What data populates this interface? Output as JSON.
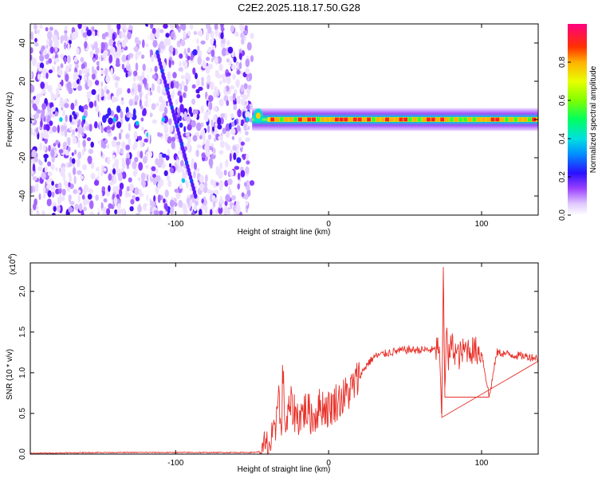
{
  "title": "C2E2.2025.118.17.50.G28",
  "chart_data": [
    {
      "type": "heatmap",
      "xlabel": "Height of straight line (km)",
      "ylabel": "Frequency (Hz)",
      "xlim": [
        -195,
        137
      ],
      "ylim": [
        -50,
        50
      ],
      "x_ticks": [
        -100,
        0,
        100
      ],
      "x_tick_labels": [
        "-100",
        "0",
        "100"
      ],
      "y_ticks": [
        -40,
        -20,
        0,
        20,
        40
      ],
      "colorbar": {
        "label": "Normalized spectral amplitude",
        "range": [
          0.0,
          1.0
        ],
        "ticks": [
          0.0,
          0.2,
          0.4,
          0.6,
          0.8
        ],
        "tick_labels": [
          "0.0",
          "0.2",
          "0.4",
          "0.6",
          "0.8"
        ]
      },
      "description_values": {
        "noisy_region_x": [
          -195,
          -50
        ],
        "signal_band_x": [
          -50,
          137
        ],
        "signal_center_freq": 0,
        "signal_peak_amplitude": 1.0
      },
      "grid": false
    },
    {
      "type": "line",
      "xlabel": "Height of straight line (km)",
      "ylabel": "SNR (10 * v/v)",
      "y_multiplier_label": "(x10",
      "y_multiplier_exp": "4",
      "xlim": [
        -195,
        137
      ],
      "ylim": [
        0,
        2.35
      ],
      "x_ticks": [
        -100,
        0,
        100
      ],
      "x_tick_labels": [
        "-100",
        "0",
        "100"
      ],
      "y_ticks": [
        0.0,
        0.5,
        1.0,
        1.5,
        2.0
      ],
      "y_tick_labels": [
        "0.0",
        "0.5",
        "1.0",
        "1.5",
        "2.0"
      ],
      "series": [
        {
          "color": "#e8312a",
          "x": [
            -195,
            -150,
            -130,
            -100,
            -80,
            -60,
            -50,
            -45,
            -40,
            -35,
            -33,
            -31,
            -30,
            -28,
            -25,
            -20,
            -15,
            -10,
            -5,
            0,
            5,
            10,
            15,
            20,
            25,
            30,
            40,
            50,
            60,
            70,
            72,
            74,
            75,
            76,
            77,
            78,
            80,
            85,
            90,
            100,
            105,
            110,
            120,
            130,
            137
          ],
          "y": [
            0.01,
            0.02,
            0.02,
            0.02,
            0.02,
            0.02,
            0.02,
            0.03,
            0.08,
            0.2,
            0.9,
            0.15,
            1.0,
            0.3,
            0.6,
            0.45,
            0.55,
            0.45,
            0.6,
            0.55,
            0.65,
            0.7,
            0.8,
            0.95,
            1.1,
            1.2,
            1.25,
            1.28,
            1.28,
            1.28,
            1.35,
            0.45,
            2.3,
            0.7,
            1.65,
            1.1,
            1.35,
            1.2,
            1.3,
            1.25,
            0.7,
            1.25,
            1.22,
            1.2,
            1.18
          ]
        }
      ],
      "grid": false
    }
  ]
}
